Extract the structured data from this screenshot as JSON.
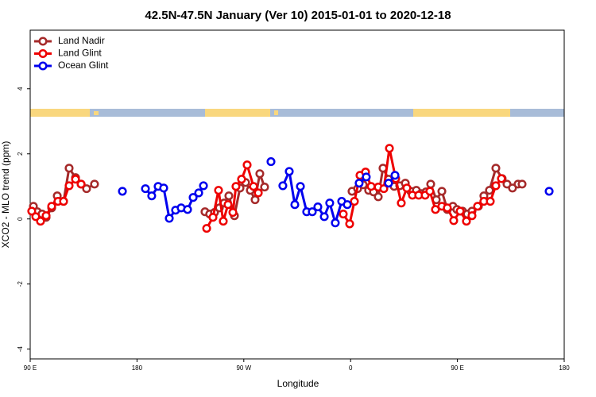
{
  "chart_data": {
    "type": "line",
    "title": "42.5N-47.5N January (Ver 10)   2015-01-01 to 2020-12-18",
    "x_label": "Longitude",
    "y_label": "XCO2 - MLO trend (ppm)",
    "xlim": [
      90,
      540
    ],
    "ylim": [
      -4.3,
      5.8
    ],
    "xticks": [
      {
        "value": 90,
        "label": "90 E"
      },
      {
        "value": 180,
        "label": "180"
      },
      {
        "value": 270,
        "label": "90 W"
      },
      {
        "value": 360,
        "label": "0"
      },
      {
        "value": 450,
        "label": "90 E"
      },
      {
        "value": 540,
        "label": "180"
      }
    ],
    "yticks": [
      -4,
      -2,
      0,
      2,
      4
    ],
    "legend": "top-left",
    "series": [
      {
        "name": "Land Nadir",
        "color": "#a52a2a",
        "x": [
          92.7,
          96.0,
          100.0,
          103.4,
          108.1,
          112.8,
          118.1,
          122.8,
          128.2,
          132.9,
          137.5,
          144.2,
          null,
          237.3,
          241.3,
          245.3,
          249.4,
          253.4,
          257.4,
          262.1,
          266.8,
          271.5,
          275.5,
          279.5,
          283.5,
          287.5,
          null,
          361.2,
          365.9,
          370.6,
          375.2,
          379.3,
          383.3,
          387.3,
          392.0,
          396.7,
          401.4,
          406.1,
          410.7,
          415.4,
          419.4,
          423.5,
          427.5,
          432.2,
          436.9,
          441.5,
          446.2,
          449.6,
          454.3,
          458.3,
          462.3,
          467.7,
          472.3,
          477.0,
          482.4,
          487.7,
          491.8,
          496.4,
          501.1,
          504.5
        ],
        "values": [
          0.39,
          0.22,
          0.15,
          0.05,
          0.34,
          0.71,
          0.54,
          1.56,
          1.27,
          1.07,
          0.93,
          1.07,
          null,
          0.22,
          0.15,
          0.2,
          0.34,
          0.49,
          0.71,
          0.1,
          0.95,
          1.12,
          0.88,
          0.59,
          1.39,
          0.98,
          null,
          0.85,
          0.93,
          1.05,
          0.88,
          0.83,
          0.68,
          1.56,
          1.22,
          1.0,
          1.02,
          1.1,
          0.85,
          0.88,
          0.78,
          0.83,
          1.07,
          0.59,
          0.85,
          0.29,
          0.39,
          0.29,
          0.24,
          0.15,
          0.24,
          0.39,
          0.71,
          0.88,
          1.56,
          1.24,
          1.07,
          0.95,
          1.07,
          1.07
        ]
      },
      {
        "name": "Land Glint",
        "color": "#ee0000",
        "x": [
          91.3,
          94.7,
          98.7,
          103.4,
          108.1,
          113.4,
          118.1,
          122.8,
          128.2,
          132.9,
          null,
          238.7,
          244.0,
          248.7,
          252.7,
          256.7,
          260.8,
          263.4,
          268.1,
          272.8,
          278.2,
          282.2,
          null,
          353.8,
          359.2,
          363.2,
          367.9,
          372.6,
          377.3,
          383.3,
          388.0,
          392.7,
          398.0,
          402.7,
          407.4,
          412.1,
          417.4,
          422.8,
          426.8,
          431.5,
          436.9,
          441.5,
          446.9,
          452.3,
          457.6,
          462.3,
          467.0,
          472.3,
          477.7,
          482.4,
          487.1
        ],
        "values": [
          0.24,
          0.07,
          -0.07,
          0.1,
          0.39,
          0.54,
          0.54,
          1.02,
          1.22,
          1.07,
          null,
          -0.29,
          0.05,
          0.88,
          -0.07,
          0.44,
          0.2,
          1.0,
          1.22,
          1.66,
          1.0,
          0.8,
          null,
          0.15,
          -0.15,
          0.54,
          1.34,
          1.44,
          1.0,
          0.98,
          0.93,
          2.17,
          1.24,
          0.49,
          0.95,
          0.73,
          0.73,
          0.73,
          0.85,
          0.29,
          0.39,
          0.34,
          -0.05,
          0.24,
          -0.07,
          0.1,
          0.39,
          0.54,
          0.54,
          1.02,
          1.24
        ]
      },
      {
        "name": "Ocean Glint",
        "color": "#0000ee",
        "x": [
          167.7,
          null,
          187.1,
          192.4,
          197.8,
          202.5,
          207.2,
          212.5,
          217.2,
          222.6,
          227.3,
          232.0,
          236.0,
          null,
          292.9,
          null,
          302.9,
          308.3,
          313.0,
          317.7,
          323.0,
          327.7,
          332.4,
          337.8,
          342.4,
          347.1,
          352.5,
          357.2,
          null,
          367.2,
          373.2,
          null,
          392.0,
          397.4,
          null,
          527.3
        ],
        "values": [
          0.85,
          null,
          0.93,
          0.71,
          1.0,
          0.95,
          0.02,
          0.27,
          0.34,
          0.29,
          0.66,
          0.8,
          1.02,
          null,
          1.76,
          null,
          1.02,
          1.46,
          0.44,
          1.0,
          0.22,
          0.22,
          0.37,
          0.07,
          0.49,
          -0.12,
          0.54,
          0.44,
          null,
          1.1,
          1.29,
          null,
          1.1,
          1.34,
          null,
          0.85
        ]
      }
    ]
  }
}
